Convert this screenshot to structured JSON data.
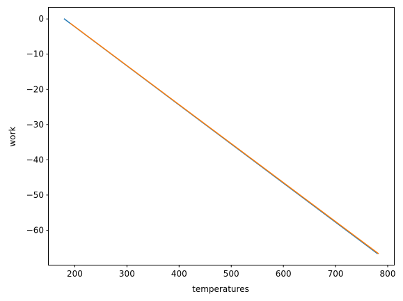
{
  "chart_data": {
    "type": "line",
    "title": "",
    "xlabel": "temperatures",
    "ylabel": "work",
    "xlim": [
      150,
      812
    ],
    "ylim": [
      -69.8,
      3.2
    ],
    "xticks": [
      200,
      300,
      400,
      500,
      600,
      700,
      800
    ],
    "yticks": [
      0,
      -10,
      -20,
      -30,
      -40,
      -50,
      -60
    ],
    "grid": false,
    "series": [
      {
        "color": "#1f77b4",
        "x": [
          180,
          780
        ],
        "y": [
          0,
          -66.6
        ]
      },
      {
        "color": "#ff7f0e",
        "x": [
          192,
          782
        ],
        "y": [
          -1.3,
          -66.6
        ]
      }
    ]
  }
}
